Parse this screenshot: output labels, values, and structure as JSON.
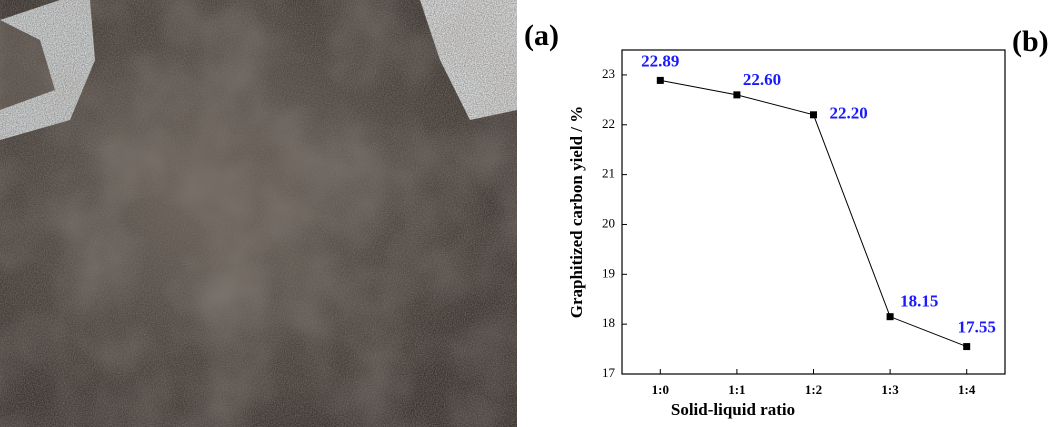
{
  "panel_labels": [
    "(a)",
    "(b)"
  ],
  "chart_data": {
    "type": "line",
    "x_label": "Solid-liquid ratio",
    "y_label": "Graphitized carbon yield / %",
    "categories": [
      "1:0",
      "1:1",
      "1:2",
      "1:3",
      "1:4"
    ],
    "values": [
      22.89,
      22.6,
      22.2,
      18.15,
      17.55
    ],
    "value_labels": [
      "22.89",
      "22.60",
      "22.20",
      "18.15",
      "17.55"
    ],
    "color": "#000000",
    "label_color": "#1a1aff",
    "ylim": [
      17,
      23.5
    ],
    "yticks": [
      17,
      18,
      19,
      20,
      21,
      22,
      23
    ]
  }
}
